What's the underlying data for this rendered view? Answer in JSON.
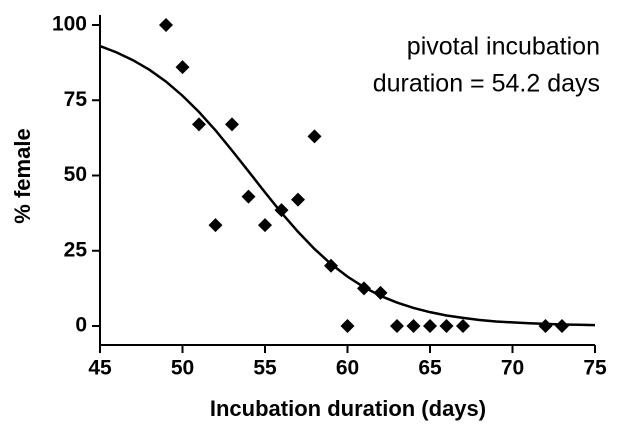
{
  "chart_data": {
    "type": "scatter",
    "x_label": "Incubation duration (days)",
    "y_label": "% female",
    "annotations": [
      "pivotal incubation",
      "duration = 54.2 days"
    ],
    "points": {
      "color": "#000000",
      "x": [
        49,
        50,
        51,
        52,
        53,
        54,
        55,
        56,
        57,
        58,
        59,
        60,
        61,
        62,
        63,
        64,
        65,
        66,
        67,
        72,
        73
      ],
      "y": [
        100,
        86,
        67,
        33.5,
        67,
        43,
        33.5,
        38.5,
        42,
        63,
        20,
        0,
        12.5,
        11,
        0,
        0,
        0,
        0,
        0,
        0,
        0
      ]
    },
    "curve": {
      "color": "#000000",
      "x": [
        45,
        46,
        47,
        48,
        49,
        50,
        51,
        52,
        53,
        54,
        55,
        56,
        57,
        58,
        59,
        60,
        61,
        62,
        63,
        64,
        65,
        66,
        67,
        68,
        69,
        70,
        71,
        72,
        73,
        74,
        75
      ],
      "y": [
        93.0,
        90.9,
        88.3,
        85.1,
        81.2,
        76.5,
        71.1,
        65.0,
        58.3,
        51.4,
        44.4,
        37.6,
        31.3,
        25.6,
        20.6,
        16.4,
        12.9,
        10.0,
        7.8,
        6.0,
        4.6,
        3.5,
        2.7,
        2.0,
        1.5,
        1.2,
        0.9,
        0.7,
        0.5,
        0.4,
        0.3
      ]
    },
    "xlim": [
      45,
      75
    ],
    "xticks": [
      45,
      50,
      55,
      60,
      65,
      70,
      75
    ],
    "ylim": [
      0,
      100
    ],
    "yticks": [
      0,
      25,
      50,
      75,
      100
    ]
  }
}
